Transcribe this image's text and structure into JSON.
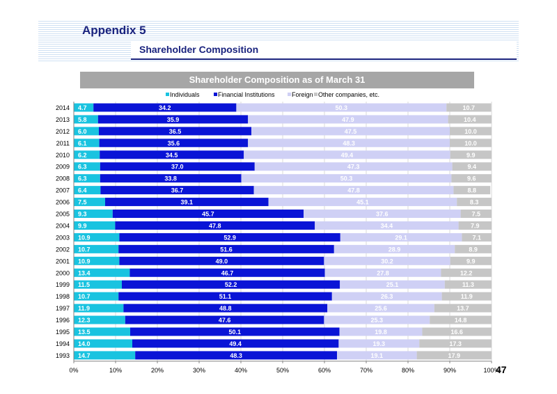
{
  "header": {
    "appendix_title": "Appendix 5",
    "section_title": "Shareholder Composition"
  },
  "page_number": "47",
  "colors": {
    "individuals": "#19c3e0",
    "financial_institutions": "#0a14d6",
    "foreign": "#cfd0f5",
    "other_companies": "#c6c6c6"
  },
  "chart_data": {
    "type": "bar",
    "orientation": "horizontal",
    "stacked": "percent",
    "title": "Shareholder Composition as of March 31",
    "legend_position": "top",
    "categories": [
      "2014",
      "2013",
      "2012",
      "2011",
      "2010",
      "2009",
      "2008",
      "2007",
      "2006",
      "2005",
      "2004",
      "2003",
      "2002",
      "2001",
      "2000",
      "1999",
      "1998",
      "1997",
      "1996",
      "1995",
      "1994",
      "1993"
    ],
    "series": [
      {
        "name": "Individuals",
        "values": [
          4.7,
          5.8,
          6.0,
          6.1,
          6.2,
          6.3,
          6.3,
          6.4,
          7.5,
          9.3,
          9.9,
          10.9,
          10.7,
          10.9,
          13.4,
          11.5,
          10.7,
          11.9,
          12.3,
          13.5,
          14.0,
          14.7
        ]
      },
      {
        "name": "Financial Institutions",
        "values": [
          34.2,
          35.9,
          36.5,
          35.6,
          34.5,
          37.0,
          33.8,
          36.7,
          39.1,
          45.7,
          47.8,
          52.9,
          51.6,
          49.0,
          46.7,
          52.2,
          51.1,
          48.8,
          47.6,
          50.1,
          49.4,
          48.3
        ]
      },
      {
        "name": "Foreign",
        "values": [
          50.3,
          47.9,
          47.5,
          48.3,
          49.4,
          47.3,
          50.3,
          47.8,
          45.1,
          37.6,
          34.4,
          29.1,
          28.9,
          30.2,
          27.8,
          25.1,
          26.3,
          25.6,
          25.3,
          19.8,
          19.3,
          19.1
        ]
      },
      {
        "name": "Other companies, etc.",
        "values": [
          10.7,
          10.4,
          10.0,
          10.0,
          9.9,
          9.4,
          9.6,
          8.8,
          8.3,
          7.5,
          7.9,
          7.1,
          8.9,
          9.9,
          12.2,
          11.3,
          11.9,
          13.7,
          14.8,
          16.6,
          17.3,
          17.9
        ]
      }
    ],
    "x_ticks": [
      "0%",
      "10%",
      "20%",
      "30%",
      "40%",
      "50%",
      "60%",
      "70%",
      "80%",
      "90%",
      "100%"
    ],
    "xlim": [
      0,
      100
    ],
    "grid": true
  }
}
